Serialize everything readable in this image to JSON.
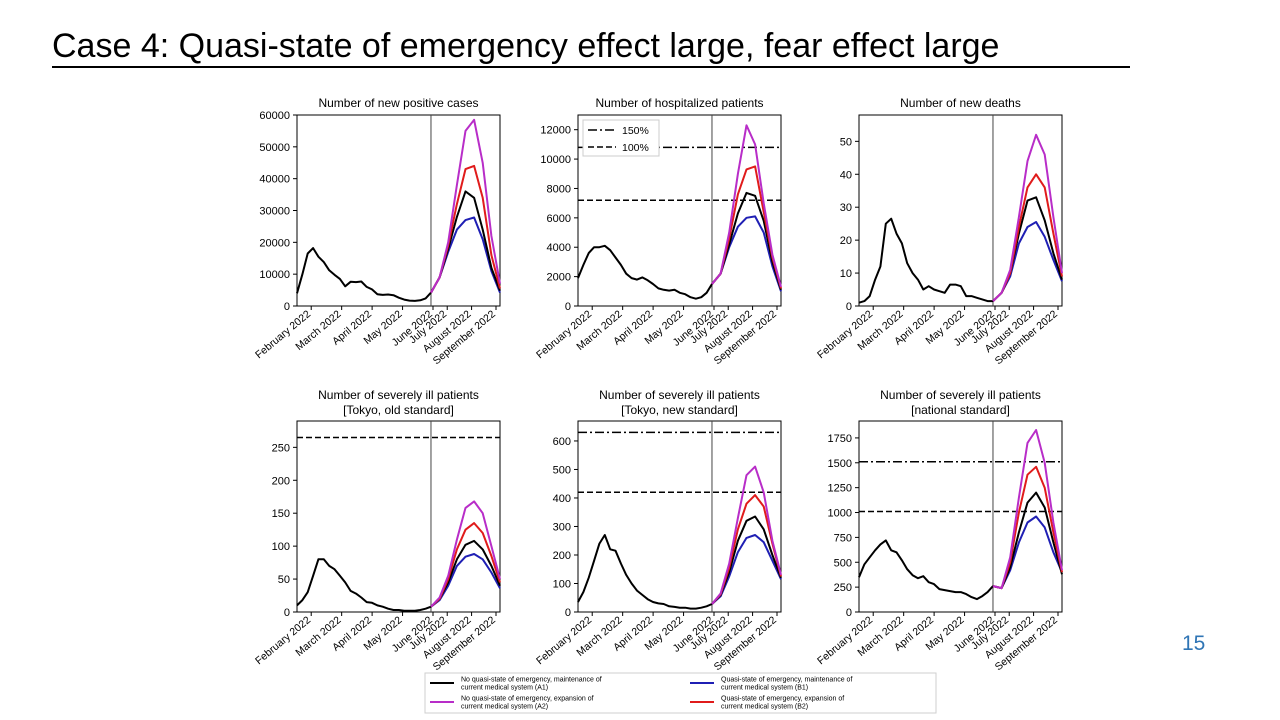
{
  "slide": {
    "title": "Case 4: Quasi-state of emergency effect large, fear effect large",
    "page_number": "15"
  },
  "legend": [
    {
      "key": "A1",
      "color": "#000000",
      "label1": "No quasi-state of emergency, maintenance of",
      "label2": "current medical system (A1)"
    },
    {
      "key": "B1",
      "color": "#1f1fb4",
      "label1": "Quasi-state of emergency, maintenance of",
      "label2": "current medical system (B1)"
    },
    {
      "key": "A2",
      "color": "#b82dc8",
      "label1": "No quasi-state of emergency, expansion of",
      "label2": "current medical system (A2)"
    },
    {
      "key": "B2",
      "color": "#e01b1b",
      "label1": "Quasi-state of emergency, expansion of",
      "label2": "current medical system (B2)"
    }
  ],
  "chart_data": [
    {
      "type": "line",
      "title": "Number of new positive cases",
      "x_ticks": [
        "February 2022",
        "March 2022",
        "April 2022",
        "May 2022",
        "June 2022",
        "July 2022",
        "August 2022",
        "September 2022"
      ],
      "ylim": [
        0,
        60000
      ],
      "y_ticks": [
        0,
        10000,
        20000,
        30000,
        40000,
        50000,
        60000
      ],
      "history": [
        4000,
        10000,
        16500,
        18200,
        15500,
        13800,
        11200,
        9800,
        8500,
        6200,
        7600,
        7500,
        7700,
        6000,
        5200,
        3700,
        3500,
        3600,
        3400,
        2600,
        2000,
        1700,
        1600,
        1800,
        2400,
        4200
      ],
      "projection": {
        "A1": [
          4200,
          9000,
          18000,
          28000,
          36000,
          34000,
          24000,
          12000,
          4800
        ],
        "B1": [
          4200,
          9000,
          17000,
          24000,
          27000,
          27800,
          21000,
          11000,
          4200
        ],
        "A2": [
          4200,
          9000,
          20000,
          38000,
          55000,
          58500,
          45000,
          22000,
          7000
        ],
        "B2": [
          4200,
          9000,
          19000,
          32000,
          43000,
          44000,
          34000,
          16000,
          5500
        ]
      },
      "ref_lines": []
    },
    {
      "type": "line",
      "title": "Number of hospitalized patients",
      "x_ticks": [
        "February 2022",
        "March 2022",
        "April 2022",
        "May 2022",
        "June 2022",
        "July 2022",
        "August 2022",
        "September 2022"
      ],
      "ylim": [
        0,
        13000
      ],
      "y_ticks": [
        0,
        2000,
        4000,
        6000,
        8000,
        10000,
        12000
      ],
      "history": [
        1900,
        2800,
        3600,
        4000,
        4000,
        4100,
        3800,
        3300,
        2800,
        2200,
        1900,
        1800,
        1950,
        1750,
        1500,
        1200,
        1100,
        1050,
        1100,
        900,
        800,
        600,
        500,
        600,
        900,
        1500
      ],
      "projection": {
        "A1": [
          1500,
          2200,
          4200,
          6300,
          7700,
          7500,
          5800,
          3000,
          1100
        ],
        "B1": [
          1500,
          2200,
          4000,
          5400,
          6000,
          6100,
          5000,
          2700,
          1000
        ],
        "A2": [
          1500,
          2200,
          5000,
          9000,
          12300,
          11000,
          7000,
          3500,
          1300
        ],
        "B2": [
          1500,
          2200,
          4600,
          7600,
          9300,
          9500,
          6400,
          3300,
          1200
        ]
      },
      "ref_lines": [
        {
          "label": "150%",
          "value": 10800,
          "style": "dashdot"
        },
        {
          "label": "100%",
          "value": 7200,
          "style": "dashed"
        }
      ],
      "legend_box": true
    },
    {
      "type": "line",
      "title": "Number of new deaths",
      "x_ticks": [
        "February 2022",
        "March 2022",
        "April 2022",
        "May 2022",
        "June 2022",
        "July 2022",
        "August 2022",
        "September 2022"
      ],
      "ylim": [
        0,
        58
      ],
      "y_ticks": [
        0,
        10,
        20,
        30,
        40,
        50
      ],
      "history": [
        1,
        1.5,
        3,
        8,
        12,
        25,
        26.5,
        22,
        19,
        13,
        10,
        8,
        5,
        6,
        5,
        4.5,
        4,
        6.5,
        6.5,
        6,
        3,
        3,
        2.5,
        2,
        1.5,
        1.5
      ],
      "projection": {
        "A1": [
          1.5,
          4,
          10,
          22,
          32,
          33,
          26,
          16,
          8
        ],
        "B1": [
          1.5,
          4,
          9,
          19,
          24,
          25.5,
          21,
          14,
          7.5
        ],
        "A2": [
          1.5,
          4,
          11,
          27,
          44,
          52,
          46,
          27,
          10
        ],
        "B2": [
          1.5,
          4,
          10,
          24,
          36,
          40,
          36,
          22,
          9
        ]
      },
      "ref_lines": []
    },
    {
      "type": "line",
      "title": "Number of severely ill patients",
      "subtitle": "[Tokyo, old standard]",
      "x_ticks": [
        "February 2022",
        "March 2022",
        "April 2022",
        "May 2022",
        "June 2022",
        "July 2022",
        "August 2022",
        "September 2022"
      ],
      "ylim": [
        0,
        290
      ],
      "y_ticks": [
        0,
        50,
        100,
        150,
        200,
        250
      ],
      "history": [
        10,
        18,
        30,
        55,
        80,
        80,
        70,
        65,
        55,
        45,
        32,
        28,
        22,
        15,
        14,
        10,
        8,
        5,
        3,
        3,
        2,
        2,
        2,
        3,
        5,
        8
      ],
      "projection": {
        "A1": [
          8,
          20,
          45,
          80,
          102,
          108,
          95,
          70,
          40
        ],
        "B1": [
          8,
          18,
          40,
          70,
          84,
          88,
          80,
          60,
          36
        ],
        "A2": [
          8,
          22,
          55,
          110,
          158,
          168,
          150,
          100,
          50
        ],
        "B2": [
          8,
          20,
          50,
          95,
          125,
          135,
          120,
          85,
          45
        ]
      },
      "ref_lines": [
        {
          "label": "",
          "value": 265,
          "style": "dashed"
        }
      ]
    },
    {
      "type": "line",
      "title": "Number of severely ill patients",
      "subtitle": "[Tokyo, new standard]",
      "x_ticks": [
        "February 2022",
        "March 2022",
        "April 2022",
        "May 2022",
        "June 2022",
        "July 2022",
        "August 2022",
        "September 2022"
      ],
      "ylim": [
        0,
        670
      ],
      "y_ticks": [
        0,
        100,
        200,
        300,
        400,
        500,
        600
      ],
      "history": [
        35,
        70,
        120,
        180,
        240,
        270,
        220,
        215,
        170,
        130,
        100,
        75,
        60,
        45,
        35,
        30,
        28,
        20,
        18,
        15,
        15,
        12,
        12,
        15,
        20,
        28
      ],
      "projection": {
        "A1": [
          28,
          60,
          140,
          250,
          320,
          335,
          290,
          200,
          120
        ],
        "B1": [
          28,
          55,
          125,
          210,
          260,
          270,
          245,
          180,
          115
        ],
        "A2": [
          28,
          65,
          170,
          330,
          480,
          510,
          420,
          250,
          130
        ],
        "B2": [
          28,
          62,
          155,
          290,
          380,
          410,
          370,
          240,
          125
        ]
      },
      "ref_lines": [
        {
          "label": "",
          "value": 630,
          "style": "dashdot"
        },
        {
          "label": "",
          "value": 420,
          "style": "dashed"
        }
      ]
    },
    {
      "type": "line",
      "title": "Number of severely ill patients",
      "subtitle": "[national standard]",
      "x_ticks": [
        "February 2022",
        "March 2022",
        "April 2022",
        "May 2022",
        "June 2022",
        "July 2022",
        "August 2022",
        "September 2022"
      ],
      "ylim": [
        0,
        1920
      ],
      "y_ticks": [
        0,
        250,
        500,
        750,
        1000,
        1250,
        1500,
        1750
      ],
      "history": [
        350,
        480,
        550,
        620,
        680,
        720,
        620,
        600,
        520,
        430,
        370,
        340,
        360,
        300,
        280,
        230,
        220,
        210,
        200,
        200,
        180,
        150,
        130,
        160,
        200,
        260
      ],
      "projection": {
        "A1": [
          260,
          240,
          450,
          800,
          1100,
          1200,
          1050,
          700,
          380
        ],
        "B1": [
          260,
          240,
          420,
          700,
          900,
          960,
          850,
          600,
          400
        ],
        "A2": [
          260,
          240,
          550,
          1150,
          1700,
          1830,
          1500,
          900,
          420
        ],
        "B2": [
          260,
          240,
          500,
          1000,
          1380,
          1460,
          1250,
          800,
          400
        ]
      },
      "ref_lines": [
        {
          "label": "",
          "value": 1510,
          "style": "dashdot"
        },
        {
          "label": "",
          "value": 1010,
          "style": "dashed"
        }
      ]
    }
  ]
}
